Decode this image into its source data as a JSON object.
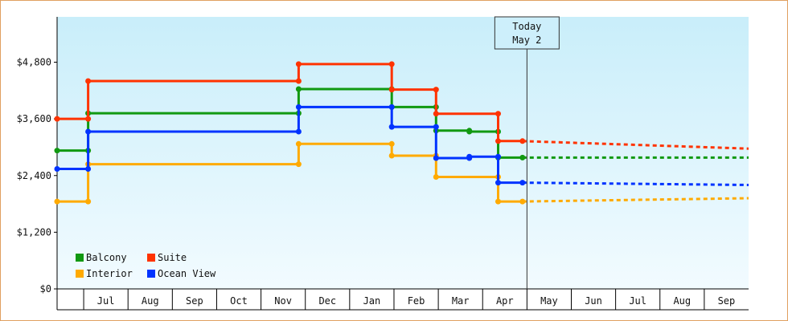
{
  "chart_data": {
    "type": "line",
    "title": "",
    "xlabel": "",
    "ylabel": "",
    "ylim": [
      0,
      5760
    ],
    "yticks": [
      {
        "value": 0,
        "label": "$0"
      },
      {
        "value": 1200,
        "label": "$1,200"
      },
      {
        "value": 2400,
        "label": "$2,400"
      },
      {
        "value": 3600,
        "label": "$3,600"
      },
      {
        "value": 4800,
        "label": "$4,800"
      }
    ],
    "months": [
      {
        "label": "Jul",
        "start": 0.6,
        "end": 1.6
      },
      {
        "label": "Aug",
        "start": 1.6,
        "end": 2.6
      },
      {
        "label": "Sep",
        "start": 2.6,
        "end": 3.6
      },
      {
        "label": "Oct",
        "start": 3.6,
        "end": 4.6
      },
      {
        "label": "Nov",
        "start": 4.6,
        "end": 5.6
      },
      {
        "label": "Dec",
        "start": 5.6,
        "end": 6.6
      },
      {
        "label": "Jan",
        "start": 6.6,
        "end": 7.6
      },
      {
        "label": "Feb",
        "start": 7.6,
        "end": 8.6
      },
      {
        "label": "Mar",
        "start": 8.6,
        "end": 9.6
      },
      {
        "label": "Apr",
        "start": 9.6,
        "end": 10.6
      },
      {
        "label": "May",
        "start": 10.6,
        "end": 11.6
      },
      {
        "label": "Jun",
        "start": 11.6,
        "end": 12.6
      },
      {
        "label": "Jul",
        "start": 12.6,
        "end": 13.6
      },
      {
        "label": "Aug",
        "start": 13.6,
        "end": 14.6
      },
      {
        "label": "Sep",
        "start": 14.6,
        "end": 15.6
      }
    ],
    "xlim": [
      0,
      15.6
    ],
    "today": {
      "x": 10.6,
      "label_line1": "Today",
      "label_line2": "May 2"
    },
    "grid": false,
    "legend_position": "bottom-left",
    "series": [
      {
        "name": "Balcony",
        "color": "#119911",
        "history": [
          [
            0,
            2930
          ],
          [
            0.7,
            2930
          ],
          [
            0.7,
            3720
          ],
          [
            5.45,
            3720
          ],
          [
            5.45,
            4230
          ],
          [
            7.55,
            4230
          ],
          [
            7.55,
            3850
          ],
          [
            8.55,
            3850
          ],
          [
            8.55,
            3350
          ],
          [
            9.3,
            3350
          ],
          [
            9.3,
            3330
          ],
          [
            9.95,
            3330
          ],
          [
            9.95,
            2780
          ],
          [
            10.5,
            2780
          ]
        ],
        "forecast": [
          [
            10.5,
            2780
          ],
          [
            15.6,
            2780
          ]
        ]
      },
      {
        "name": "Suite",
        "color": "#ff3300",
        "history": [
          [
            0,
            3600
          ],
          [
            0.7,
            3600
          ],
          [
            0.7,
            4400
          ],
          [
            5.45,
            4400
          ],
          [
            5.45,
            4760
          ],
          [
            7.55,
            4760
          ],
          [
            7.55,
            4220
          ],
          [
            8.55,
            4220
          ],
          [
            8.55,
            3710
          ],
          [
            9.95,
            3710
          ],
          [
            9.95,
            3130
          ],
          [
            10.5,
            3130
          ]
        ],
        "forecast": [
          [
            10.5,
            3130
          ],
          [
            15.6,
            2970
          ]
        ]
      },
      {
        "name": "Interior",
        "color": "#ffaa00",
        "history": [
          [
            0,
            1850
          ],
          [
            0.7,
            1850
          ],
          [
            0.7,
            2640
          ],
          [
            5.45,
            2640
          ],
          [
            5.45,
            3070
          ],
          [
            7.55,
            3070
          ],
          [
            7.55,
            2820
          ],
          [
            8.55,
            2820
          ],
          [
            8.55,
            2370
          ],
          [
            9.95,
            2370
          ],
          [
            9.95,
            1850
          ],
          [
            10.5,
            1850
          ]
        ],
        "forecast": [
          [
            10.5,
            1850
          ],
          [
            15.6,
            1920
          ]
        ]
      },
      {
        "name": "Ocean View",
        "color": "#0033ff",
        "history": [
          [
            0,
            2540
          ],
          [
            0.7,
            2540
          ],
          [
            0.7,
            3330
          ],
          [
            5.45,
            3330
          ],
          [
            5.45,
            3850
          ],
          [
            7.55,
            3850
          ],
          [
            7.55,
            3430
          ],
          [
            8.55,
            3430
          ],
          [
            8.55,
            2770
          ],
          [
            9.3,
            2770
          ],
          [
            9.3,
            2800
          ],
          [
            9.95,
            2800
          ],
          [
            9.95,
            2250
          ],
          [
            10.5,
            2250
          ]
        ],
        "forecast": [
          [
            10.5,
            2250
          ],
          [
            15.6,
            2200
          ]
        ]
      }
    ],
    "legend": [
      {
        "name": "Balcony",
        "color": "#119911"
      },
      {
        "name": "Suite",
        "color": "#ff3300"
      },
      {
        "name": "Interior",
        "color": "#ffaa00"
      },
      {
        "name": "Ocean View",
        "color": "#0033ff"
      }
    ]
  }
}
